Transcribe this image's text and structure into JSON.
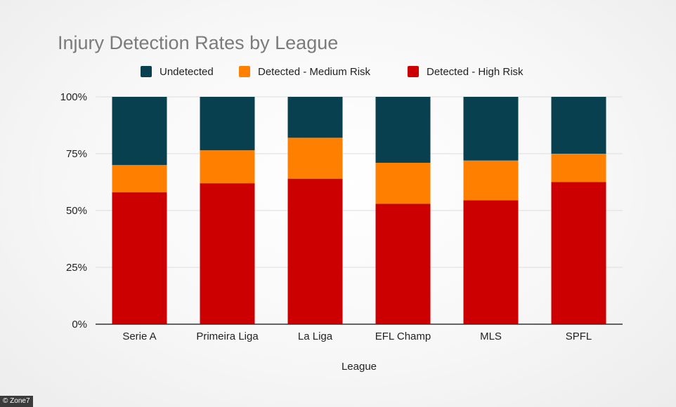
{
  "chart_data": {
    "type": "bar",
    "stacked": true,
    "title": "Injury Detection Rates by League",
    "xlabel": "League",
    "ylabel": "",
    "ylim": [
      0,
      100
    ],
    "yticks": [
      "0%",
      "25%",
      "50%",
      "75%",
      "100%"
    ],
    "ytick_values": [
      0,
      25,
      50,
      75,
      100
    ],
    "legend_position": "top",
    "grid": true,
    "categories": [
      "Serie A",
      "Primeira Liga",
      "La Liga",
      "EFL Champ",
      "MLS",
      "SPFL"
    ],
    "series": [
      {
        "name": "Detected - High Risk",
        "color": "#cc0000",
        "values": [
          58,
          62,
          64,
          53,
          54.5,
          62.5
        ]
      },
      {
        "name": "Detected - Medium Risk",
        "color": "#ff7f00",
        "values": [
          12,
          14.5,
          18,
          18,
          17.5,
          12.5
        ]
      },
      {
        "name": "Undetected",
        "color": "#08404f",
        "values": [
          30,
          23.5,
          18,
          29,
          28,
          25
        ]
      }
    ],
    "legend_order": [
      "Undetected",
      "Detected - Medium Risk",
      "Detected - High Risk"
    ]
  },
  "credit": "© Zone7"
}
